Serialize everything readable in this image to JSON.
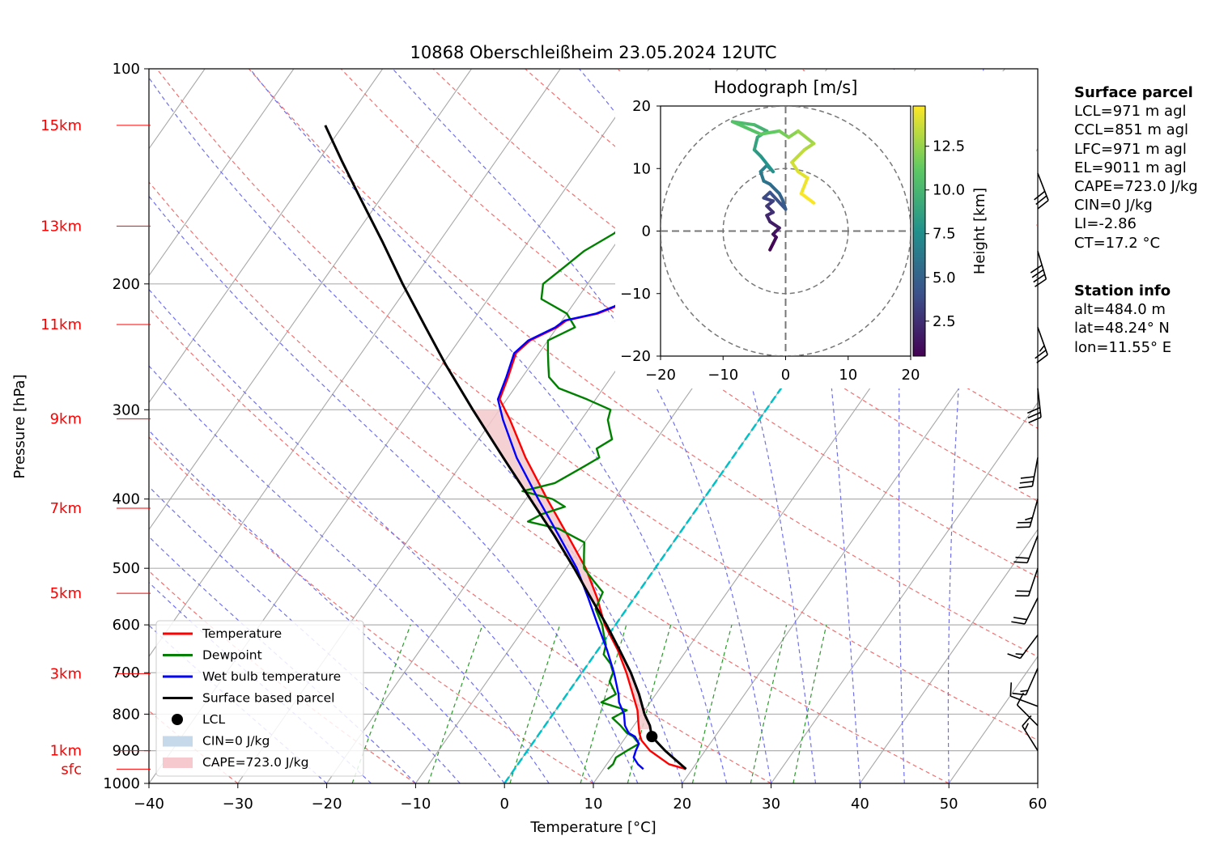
{
  "chart_data": {
    "type": "line",
    "title": "10868 Oberschleißheim 23.05.2024 12UTC",
    "xlabel": "Temperature [°C]",
    "ylabel": "Pressure [hPa]",
    "xlim": [
      -40,
      60
    ],
    "ylim": [
      1000,
      100
    ],
    "y_log_scale": true,
    "grid": true,
    "x_ticks": [
      "−40",
      "−30",
      "−20",
      "−10",
      "0",
      "10",
      "20",
      "30",
      "40",
      "50",
      "60"
    ],
    "x_tick_values": [
      -40,
      -30,
      -20,
      -10,
      0,
      10,
      20,
      30,
      40,
      50,
      60
    ],
    "y_ticks": [
      "100",
      "200",
      "300",
      "400",
      "500",
      "600",
      "700",
      "800",
      "900",
      "1000"
    ],
    "y_tick_values": [
      100,
      200,
      300,
      400,
      500,
      600,
      700,
      800,
      900,
      1000
    ],
    "height_labels": [
      {
        "label": "sfc",
        "p": 955
      },
      {
        "label": "1km",
        "p": 900
      },
      {
        "label": "3km",
        "p": 702
      },
      {
        "label": "5km",
        "p": 542
      },
      {
        "label": "7km",
        "p": 412
      },
      {
        "label": "9km",
        "p": 309
      },
      {
        "label": "11km",
        "p": 228
      },
      {
        "label": "13km",
        "p": 166
      },
      {
        "label": "15km",
        "p": 120
      }
    ],
    "legend_position": "lower-left",
    "legend": [
      {
        "label": "Temperature",
        "color": "#ff0000",
        "kind": "line"
      },
      {
        "label": "Dewpoint",
        "color": "#008000",
        "kind": "line"
      },
      {
        "label": "Wet bulb temperature",
        "color": "#0000ff",
        "kind": "line"
      },
      {
        "label": "Surface based parcel",
        "color": "#000000",
        "kind": "line"
      },
      {
        "label": "LCL",
        "color": "#000000",
        "kind": "dot"
      },
      {
        "label": "CIN=0 J/kg",
        "color": "#c6d9ea",
        "kind": "patch"
      },
      {
        "label": "CAPE=723.0 J/kg",
        "color": "#f5c9cd",
        "kind": "patch"
      }
    ],
    "series": [
      {
        "name": "Temperature",
        "color": "#ff0000",
        "points": [
          [
            955,
            19.3
          ],
          [
            940,
            17.0
          ],
          [
            900,
            13.8
          ],
          [
            870,
            12.0
          ],
          [
            850,
            11.2
          ],
          [
            820,
            10.2
          ],
          [
            790,
            9.2
          ],
          [
            750,
            7.4
          ],
          [
            700,
            5.0
          ],
          [
            650,
            2.2
          ],
          [
            600,
            -1.2
          ],
          [
            550,
            -4.2
          ],
          [
            500,
            -7.8
          ],
          [
            450,
            -12.4
          ],
          [
            400,
            -17.6
          ],
          [
            350,
            -23.3
          ],
          [
            310,
            -28.0
          ],
          [
            290,
            -30.8
          ],
          [
            270,
            -31.6
          ],
          [
            250,
            -32.6
          ],
          [
            240,
            -32.0
          ],
          [
            230,
            -30.0
          ],
          [
            225,
            -29.5
          ],
          [
            220,
            -26.5
          ],
          [
            215,
            -25.0
          ],
          [
            210,
            -24.2
          ],
          [
            205,
            -24.0
          ],
          [
            200,
            -23.8
          ],
          [
            195,
            -23.2
          ],
          [
            190,
            -22.5
          ],
          [
            185,
            -22.0
          ],
          [
            180,
            -21.0
          ],
          [
            175,
            -20.5
          ],
          [
            170,
            -19.7
          ],
          [
            165,
            -19.4
          ],
          [
            160,
            -19.0
          ],
          [
            155,
            -18.6
          ],
          [
            150,
            -18.3
          ],
          [
            145,
            -17.5
          ],
          [
            140,
            -17.2
          ],
          [
            135,
            -16.8
          ],
          [
            130,
            -16.2
          ],
          [
            125,
            -15.7
          ],
          [
            120,
            -15.2
          ]
        ]
      },
      {
        "name": "Dewpoint",
        "color": "#008000",
        "points": [
          [
            955,
            10.5
          ],
          [
            940,
            10.7
          ],
          [
            920,
            10.5
          ],
          [
            900,
            11.2
          ],
          [
            880,
            12.0
          ],
          [
            860,
            10.8
          ],
          [
            850,
            9.8
          ],
          [
            830,
            8.5
          ],
          [
            810,
            7.0
          ],
          [
            790,
            8.0
          ],
          [
            770,
            4.5
          ],
          [
            750,
            5.5
          ],
          [
            720,
            3.8
          ],
          [
            700,
            3.5
          ],
          [
            680,
            2.5
          ],
          [
            660,
            1.0
          ],
          [
            640,
            0.5
          ],
          [
            620,
            -0.5
          ],
          [
            600,
            -1.5
          ],
          [
            570,
            -3.5
          ],
          [
            540,
            -4.0
          ],
          [
            520,
            -6.0
          ],
          [
            500,
            -8.0
          ],
          [
            480,
            -9.0
          ],
          [
            460,
            -10.0
          ],
          [
            440,
            -14.0
          ],
          [
            430,
            -18.0
          ],
          [
            420,
            -17.0
          ],
          [
            410,
            -15.0
          ],
          [
            400,
            -17.0
          ],
          [
            390,
            -21.0
          ],
          [
            380,
            -18.0
          ],
          [
            370,
            -17.0
          ],
          [
            360,
            -16.0
          ],
          [
            350,
            -15.0
          ],
          [
            340,
            -16.0
          ],
          [
            330,
            -15.0
          ],
          [
            320,
            -16.0
          ],
          [
            310,
            -17.0
          ],
          [
            300,
            -17.5
          ],
          [
            290,
            -21.0
          ],
          [
            280,
            -25.0
          ],
          [
            270,
            -27.0
          ],
          [
            260,
            -28.0
          ],
          [
            250,
            -29.0
          ],
          [
            240,
            -30.0
          ],
          [
            230,
            -28.0
          ],
          [
            220,
            -30.0
          ],
          [
            210,
            -34.0
          ],
          [
            200,
            -35.0
          ],
          [
            190,
            -34.0
          ],
          [
            180,
            -33.0
          ],
          [
            170,
            -31.0
          ],
          [
            160,
            -30.0
          ],
          [
            150,
            -29.0
          ],
          [
            140,
            -28.0
          ],
          [
            130,
            -26.0
          ],
          [
            120,
            -24.0
          ]
        ]
      },
      {
        "name": "Wet bulb temperature",
        "color": "#0000ff",
        "points": [
          [
            955,
            14.5
          ],
          [
            940,
            13.5
          ],
          [
            920,
            12.5
          ],
          [
            900,
            12.2
          ],
          [
            880,
            12.0
          ],
          [
            860,
            11.0
          ],
          [
            850,
            10.0
          ],
          [
            830,
            9.0
          ],
          [
            800,
            8.0
          ],
          [
            770,
            6.5
          ],
          [
            750,
            5.8
          ],
          [
            700,
            3.6
          ],
          [
            650,
            1.0
          ],
          [
            600,
            -2.0
          ],
          [
            550,
            -5.2
          ],
          [
            500,
            -8.8
          ],
          [
            450,
            -13.4
          ],
          [
            400,
            -18.6
          ],
          [
            350,
            -24.3
          ],
          [
            310,
            -28.8
          ],
          [
            290,
            -31.0
          ],
          [
            270,
            -31.8
          ],
          [
            250,
            -32.8
          ],
          [
            240,
            -32.2
          ],
          [
            230,
            -30.2
          ],
          [
            225,
            -29.7
          ],
          [
            220,
            -26.7
          ],
          [
            215,
            -25.2
          ],
          [
            210,
            -24.5
          ],
          [
            205,
            -24.3
          ],
          [
            200,
            -24.1
          ],
          [
            195,
            -23.5
          ],
          [
            190,
            -22.8
          ],
          [
            185,
            -22.3
          ],
          [
            180,
            -21.3
          ],
          [
            175,
            -20.8
          ],
          [
            170,
            -20.0
          ],
          [
            165,
            -19.7
          ],
          [
            160,
            -19.3
          ],
          [
            155,
            -18.9
          ],
          [
            150,
            -18.6
          ],
          [
            145,
            -17.8
          ],
          [
            140,
            -17.5
          ],
          [
            135,
            -17.1
          ],
          [
            130,
            -16.5
          ],
          [
            125,
            -16.0
          ],
          [
            120,
            -15.5
          ]
        ]
      },
      {
        "name": "Surface based parcel",
        "color": "#000000",
        "points": [
          [
            955,
            19.3
          ],
          [
            900,
            15.5
          ],
          [
            860,
            12.9
          ],
          [
            830,
            11.8
          ],
          [
            800,
            10.3
          ],
          [
            750,
            8.1
          ],
          [
            700,
            5.5
          ],
          [
            650,
            2.4
          ],
          [
            600,
            -1.0
          ],
          [
            550,
            -4.9
          ],
          [
            500,
            -9.1
          ],
          [
            450,
            -13.9
          ],
          [
            400,
            -19.5
          ],
          [
            350,
            -25.8
          ],
          [
            300,
            -33.0
          ],
          [
            260,
            -39.5
          ],
          [
            230,
            -44.8
          ],
          [
            200,
            -50.8
          ],
          [
            175,
            -56.3
          ],
          [
            150,
            -62.8
          ],
          [
            135,
            -67.2
          ],
          [
            120,
            -72.0
          ]
        ]
      }
    ],
    "lcl_point": {
      "p": 860,
      "t": 12.9
    },
    "cape_shading": {
      "from_p": 840,
      "to_p": 300
    },
    "hodograph": {
      "title": "Hodograph [m/s]",
      "xlim": [
        -20,
        20
      ],
      "ylim": [
        -20,
        20
      ],
      "x_ticks": [
        "−20",
        "−10",
        "0",
        "10",
        "20"
      ],
      "y_ticks": [
        "−20",
        "−10",
        "0",
        "10",
        "20"
      ],
      "rings": [
        10,
        20
      ],
      "colorbar_label": "Height [km]",
      "colorbar_ticks": [
        "2.5",
        "5.0",
        "7.5",
        "10.0",
        "12.5"
      ],
      "colorbar_tick_values": [
        2.5,
        5.0,
        7.5,
        10.0,
        12.5
      ],
      "colorbar_range": [
        0.5,
        14.8
      ],
      "points": [
        [
          -2.5,
          -3.0,
          0.5
        ],
        [
          -2.0,
          -2.0,
          0.8
        ],
        [
          -1.5,
          -1.0,
          1.0
        ],
        [
          -2.0,
          -0.5,
          1.2
        ],
        [
          -1.0,
          0.5,
          1.5
        ],
        [
          -2.5,
          1.5,
          1.8
        ],
        [
          -3.0,
          2.5,
          2.1
        ],
        [
          -2.0,
          3.0,
          2.4
        ],
        [
          -3.0,
          4.0,
          2.8
        ],
        [
          -2.0,
          4.8,
          3.2
        ],
        [
          -3.5,
          5.3,
          3.6
        ],
        [
          -2.5,
          6.2,
          4.0
        ],
        [
          0.0,
          3.5,
          4.4
        ],
        [
          -0.5,
          5.0,
          4.8
        ],
        [
          -1.0,
          6.0,
          5.2
        ],
        [
          -2.5,
          7.5,
          5.6
        ],
        [
          -3.5,
          8.0,
          6.0
        ],
        [
          -4.0,
          9.5,
          6.5
        ],
        [
          -3.0,
          10.5,
          7.0
        ],
        [
          -2.0,
          9.5,
          7.5
        ],
        [
          -4.0,
          12.0,
          8.0
        ],
        [
          -5.0,
          13.0,
          8.5
        ],
        [
          -4.5,
          15.0,
          9.0
        ],
        [
          -3.0,
          16.0,
          9.5
        ],
        [
          -5.0,
          17.0,
          10.0
        ],
        [
          -8.5,
          17.5,
          10.5
        ],
        [
          -4.0,
          15.5,
          11.0
        ],
        [
          -1.0,
          16.0,
          11.5
        ],
        [
          0.5,
          15.0,
          12.0
        ],
        [
          2.0,
          16.0,
          12.4
        ],
        [
          4.5,
          14.0,
          12.8
        ],
        [
          3.0,
          13.0,
          13.2
        ],
        [
          1.0,
          11.0,
          13.6
        ],
        [
          2.0,
          9.5,
          14.0
        ],
        [
          3.5,
          8.5,
          14.3
        ],
        [
          2.5,
          6.0,
          14.6
        ],
        [
          4.5,
          4.5,
          14.8
        ]
      ]
    },
    "wind_barbs": [
      {
        "p": 140,
        "u": -7,
        "v": 18
      },
      {
        "p": 180,
        "u": -6,
        "v": 20
      },
      {
        "p": 230,
        "u": -5,
        "v": 14
      },
      {
        "p": 280,
        "u": -2,
        "v": 18
      },
      {
        "p": 350,
        "u": 3,
        "v": 16
      },
      {
        "p": 400,
        "u": 4,
        "v": 14
      },
      {
        "p": 450,
        "u": 5,
        "v": 13
      },
      {
        "p": 500,
        "u": 4,
        "v": 12
      },
      {
        "p": 550,
        "u": 5,
        "v": 10
      },
      {
        "p": 620,
        "u": 6,
        "v": 8
      },
      {
        "p": 690,
        "u": 4,
        "v": 9
      },
      {
        "p": 780,
        "u": 8,
        "v": -3
      },
      {
        "p": 830,
        "u": 6,
        "v": -6
      },
      {
        "p": 900,
        "u": 5,
        "v": -8
      }
    ]
  },
  "info": {
    "surface_title": "Surface parcel",
    "surface_lines": [
      "LCL=971 m agl",
      "CCL=851 m agl",
      "LFC=971 m agl",
      "EL=9011 m agl",
      "CAPE=723.0 J/kg",
      "CIN=0 J/kg",
      "LI=-2.86",
      "CT=17.2 °C"
    ],
    "station_title": "Station info",
    "station_lines": [
      "alt=484.0 m",
      "lat=48.24° N",
      "lon=11.55° E"
    ]
  }
}
